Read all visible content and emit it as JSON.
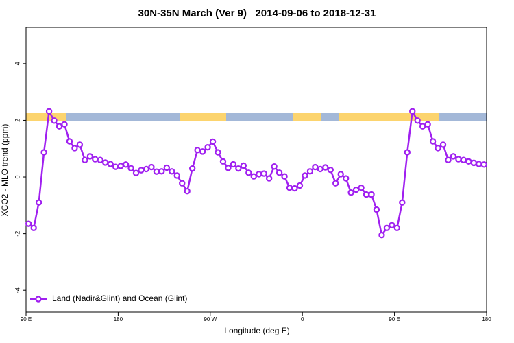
{
  "chart_data": {
    "type": "line",
    "title": "30N-35N March (Ver 9)   2014-09-06 to 2018-12-31",
    "x_label": "Longitude (deg E)",
    "y_label": "XCO2 - MLO trend (ppm)",
    "x": [
      92.5,
      97.5,
      102.5,
      107.5,
      112.5,
      117.5,
      122.5,
      127.5,
      132.5,
      137.5,
      142.5,
      147.5,
      152.5,
      157.5,
      162.5,
      167.5,
      172.5,
      177.5,
      182.5,
      187.5,
      192.5,
      197.5,
      202.5,
      207.5,
      212.5,
      217.5,
      222.5,
      227.5,
      232.5,
      237.5,
      242.5,
      247.5,
      252.5,
      257.5,
      262.5,
      267.5,
      272.5,
      277.5,
      282.5,
      287.5,
      292.5,
      297.5,
      302.5,
      307.5,
      312.5,
      317.5,
      322.5,
      327.5,
      332.5,
      337.5,
      342.5,
      347.5,
      352.5,
      357.5,
      362.5,
      367.5,
      372.5,
      377.5,
      382.5,
      387.5,
      392.5,
      397.5,
      402.5,
      407.5,
      412.5,
      417.5,
      422.5,
      427.5,
      432.5,
      437.5,
      442.5,
      447.5,
      452.5,
      457.5,
      462.5,
      467.5,
      472.5,
      477.5,
      482.5,
      487.5,
      492.5,
      497.5,
      502.5,
      507.5,
      512.5,
      517.5,
      522.5,
      527.5,
      532.5,
      537.5
    ],
    "series": [
      {
        "name": "Land (Nadir&Glint) and Ocean (Glint)",
        "color": "#a020f0",
        "values": [
          -1.65,
          -1.8,
          -0.9,
          0.87,
          2.32,
          1.99,
          1.79,
          1.86,
          1.26,
          1.02,
          1.14,
          0.6,
          0.73,
          0.63,
          0.6,
          0.51,
          0.46,
          0.36,
          0.39,
          0.44,
          0.31,
          0.14,
          0.24,
          0.28,
          0.35,
          0.19,
          0.2,
          0.33,
          0.2,
          0.05,
          -0.22,
          -0.5,
          0.3,
          0.95,
          0.9,
          1.05,
          1.25,
          0.87,
          0.55,
          0.32,
          0.45,
          0.3,
          0.4,
          0.15,
          0.02,
          0.1,
          0.12,
          -0.05,
          0.37,
          0.15,
          0.02,
          -0.38,
          -0.4,
          -0.3,
          0.05,
          0.2,
          0.35,
          0.28,
          0.34,
          0.25,
          -0.22,
          0.1,
          -0.05,
          -0.55,
          -0.45,
          -0.38,
          -0.62,
          -0.62,
          -1.15,
          -2.05,
          -1.8,
          -1.7,
          -1.8,
          -0.9,
          0.87,
          2.32,
          1.99,
          1.79,
          1.86,
          1.26,
          1.02,
          1.14,
          0.6,
          0.73,
          0.63,
          0.6,
          0.55,
          0.5,
          0.46,
          0.44
        ]
      }
    ],
    "xlim": [
      90,
      540
    ],
    "xticks": [
      {
        "value": 90,
        "label": "90 E"
      },
      {
        "value": 180,
        "label": "180"
      },
      {
        "value": 270,
        "label": "90 W"
      },
      {
        "value": 360,
        "label": "0"
      },
      {
        "value": 450,
        "label": "90 E"
      },
      {
        "value": 540,
        "label": "180"
      }
    ],
    "ylim": [
      -4.77,
      5.28
    ],
    "yticks": [
      -4,
      -2,
      0,
      2,
      4
    ],
    "legend": "bottom-left"
  }
}
